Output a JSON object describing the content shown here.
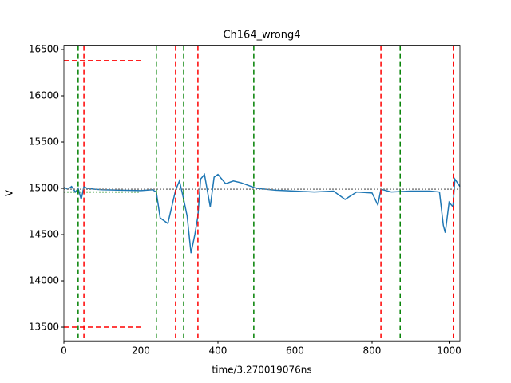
{
  "chart_data": {
    "type": "line",
    "title": "Ch164_wrong4",
    "xlabel": "time/3.270019076ns",
    "ylabel": "V",
    "x": [
      0,
      10,
      20,
      30,
      37,
      45,
      52,
      60,
      80,
      100,
      150,
      200,
      230,
      240,
      250,
      260,
      270,
      280,
      290,
      300,
      310,
      320,
      330,
      340,
      348,
      355,
      365,
      380,
      390,
      400,
      420,
      440,
      460,
      480,
      500,
      550,
      600,
      650,
      700,
      730,
      760,
      800,
      815,
      823,
      850,
      900,
      950,
      975,
      985,
      990,
      1000,
      1010,
      1015,
      1028
    ],
    "series": [
      {
        "color": "#1f77b4",
        "values": [
          15010,
          14990,
          15020,
          14960,
          15000,
          14880,
          15020,
          15000,
          14990,
          14985,
          14980,
          14975,
          14985,
          14960,
          14680,
          14650,
          14620,
          14800,
          14980,
          15080,
          14900,
          14700,
          14300,
          14500,
          14700,
          15100,
          15150,
          14800,
          15120,
          15150,
          15050,
          15080,
          15060,
          15030,
          15000,
          14980,
          14970,
          14960,
          14970,
          14880,
          14960,
          14950,
          14820,
          14990,
          14960,
          14970,
          14970,
          14960,
          14600,
          14520,
          14850,
          14800,
          15100,
          15020
        ]
      }
    ],
    "xlim": [
      0,
      1028
    ],
    "ylim": [
      13352,
      16538
    ],
    "xticks": [
      0,
      200,
      400,
      600,
      800,
      1000
    ],
    "yticks": [
      13500,
      14000,
      14500,
      15000,
      15500,
      16000,
      16500
    ],
    "vlines": [
      {
        "color": "#008000",
        "x": [
          37,
          240,
          311,
          493,
          873
        ]
      },
      {
        "color": "#ff0000",
        "x": [
          52,
          290,
          348,
          823,
          1011
        ]
      }
    ],
    "hlines": [
      {
        "y": 16380,
        "xmin": 0,
        "xmax": 200,
        "color": "#ff0000",
        "dash": "6,4"
      },
      {
        "y": 13500,
        "xmin": 0,
        "xmax": 200,
        "color": "#ff0000",
        "dash": "6,4"
      },
      {
        "y": 14960,
        "xmin": 0,
        "xmax": 200,
        "color": "#008000",
        "dash": "2,2"
      },
      {
        "y": 14990,
        "xmin": 0,
        "xmax": 1028,
        "color": "#808080",
        "dash": "2,2"
      }
    ]
  }
}
